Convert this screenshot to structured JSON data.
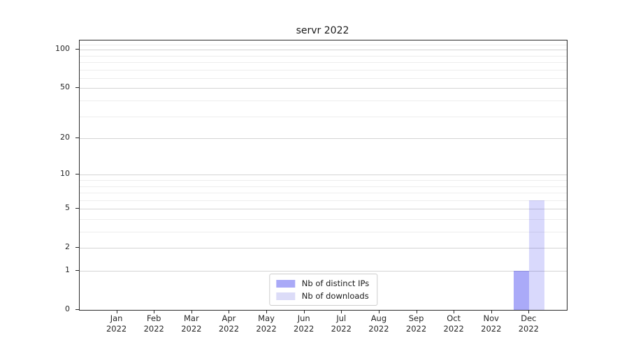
{
  "chart_data": {
    "type": "bar",
    "title": "servr 2022",
    "x_year": "2022",
    "categories": [
      "Jan",
      "Feb",
      "Mar",
      "Apr",
      "May",
      "Jun",
      "Jul",
      "Aug",
      "Sep",
      "Oct",
      "Nov",
      "Dec"
    ],
    "series": [
      {
        "name": "Nb of distinct IPs",
        "color": "rgba(20,20,235,0.36)",
        "legend_color": "#a9a9f7",
        "values": [
          0,
          0,
          0,
          0,
          0,
          0,
          0,
          0,
          0,
          0,
          0,
          1
        ]
      },
      {
        "name": "Nb of downloads",
        "color": "rgba(20,20,235,0.16)",
        "legend_color": "#dcdcf8",
        "values": [
          0,
          0,
          0,
          0,
          0,
          0,
          0,
          0,
          0,
          0,
          0,
          6
        ]
      }
    ],
    "xlabel": "",
    "ylabel": "",
    "yscale": "log1p",
    "ylim": [
      0,
      118
    ],
    "y_major_ticks": [
      0,
      1,
      2,
      5,
      10,
      20,
      50,
      100
    ],
    "y_minor_ticks": [
      3,
      4,
      6,
      7,
      8,
      9,
      30,
      40,
      60,
      70,
      80,
      90,
      110
    ],
    "grid": "on",
    "legend_position": "lower center"
  },
  "colors": {
    "axis": "#2b2b2b",
    "text": "#262626",
    "grid_major": "#d4d4d4",
    "grid_minor": "#ededed",
    "legend_border": "#cccccc",
    "background": "#ffffff"
  }
}
